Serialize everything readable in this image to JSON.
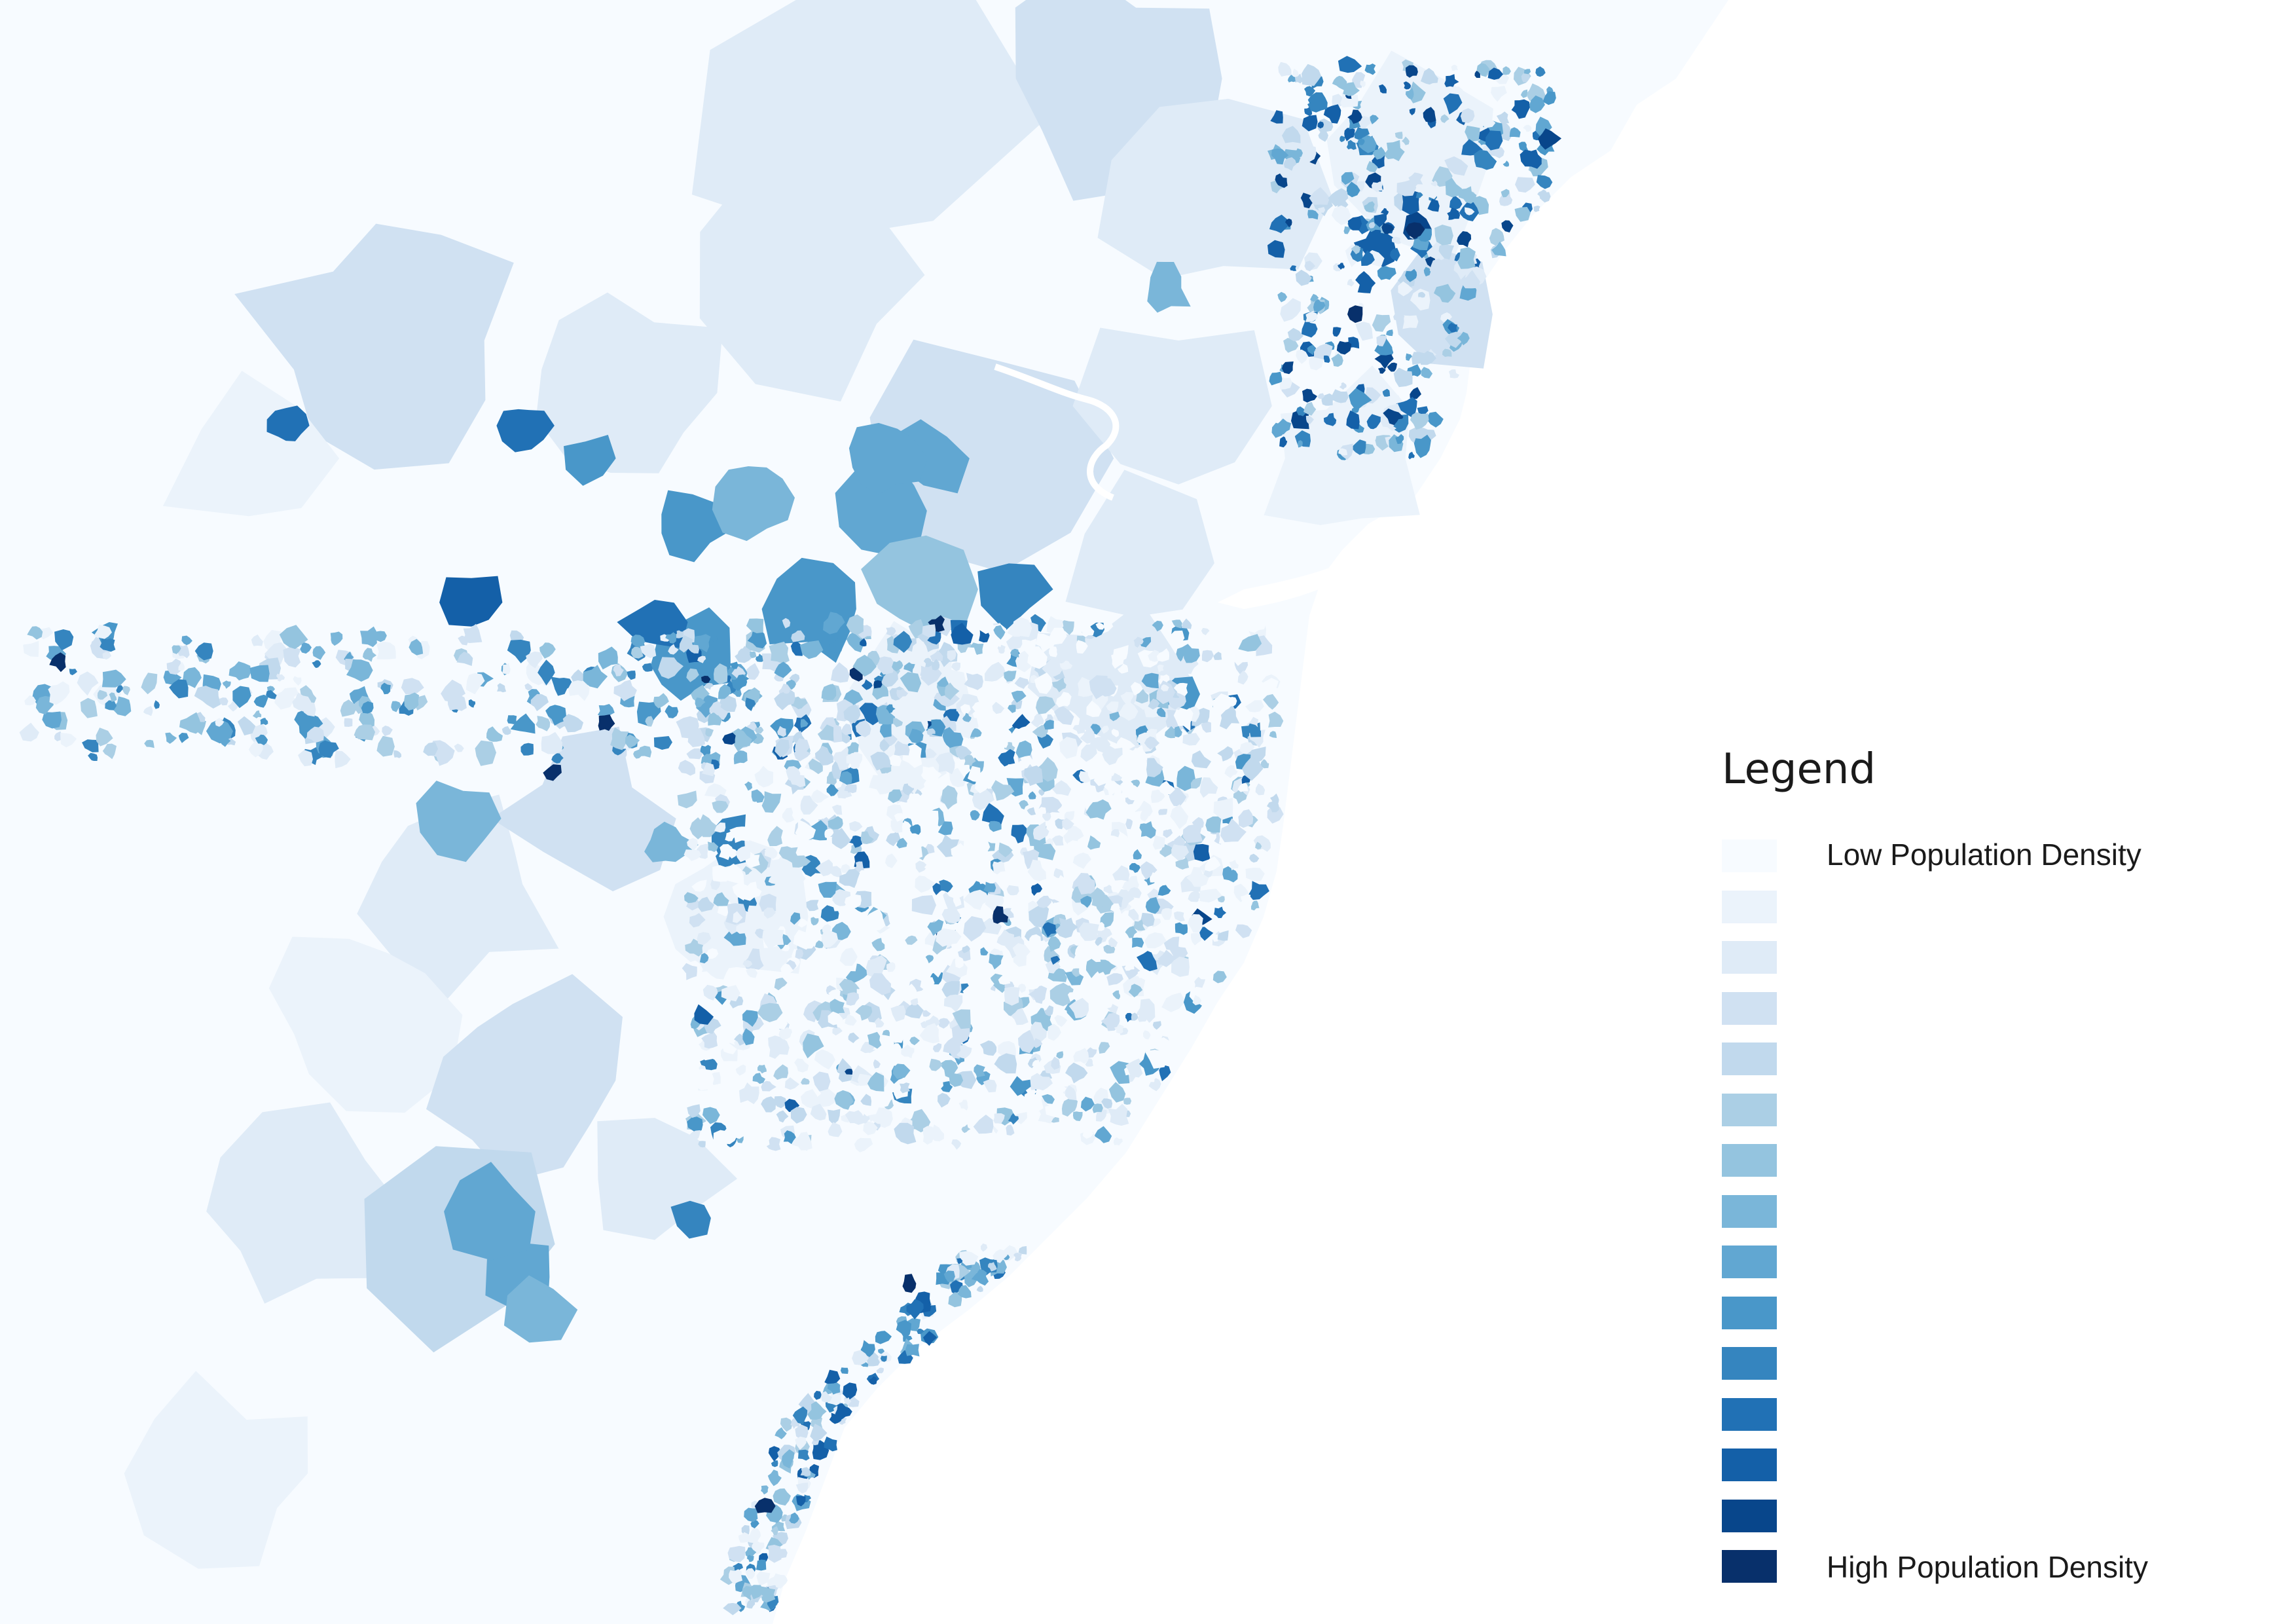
{
  "map": {
    "colors": {
      "land_base": "#f7fbff",
      "ocean": "#ffffff",
      "ramp": [
        "#f7fbff",
        "#ebf3fb",
        "#dfebf7",
        "#d0e1f2",
        "#c1d9ed",
        "#abcfe5",
        "#94c4df",
        "#7ab6d9",
        "#61a7d2",
        "#4997c9",
        "#3585bf",
        "#2171b5",
        "#1460a8",
        "#08468b",
        "#08306b"
      ]
    }
  },
  "legend": {
    "title": "Legend",
    "low_label": "Low Population Density",
    "high_label": "High Population Density"
  }
}
